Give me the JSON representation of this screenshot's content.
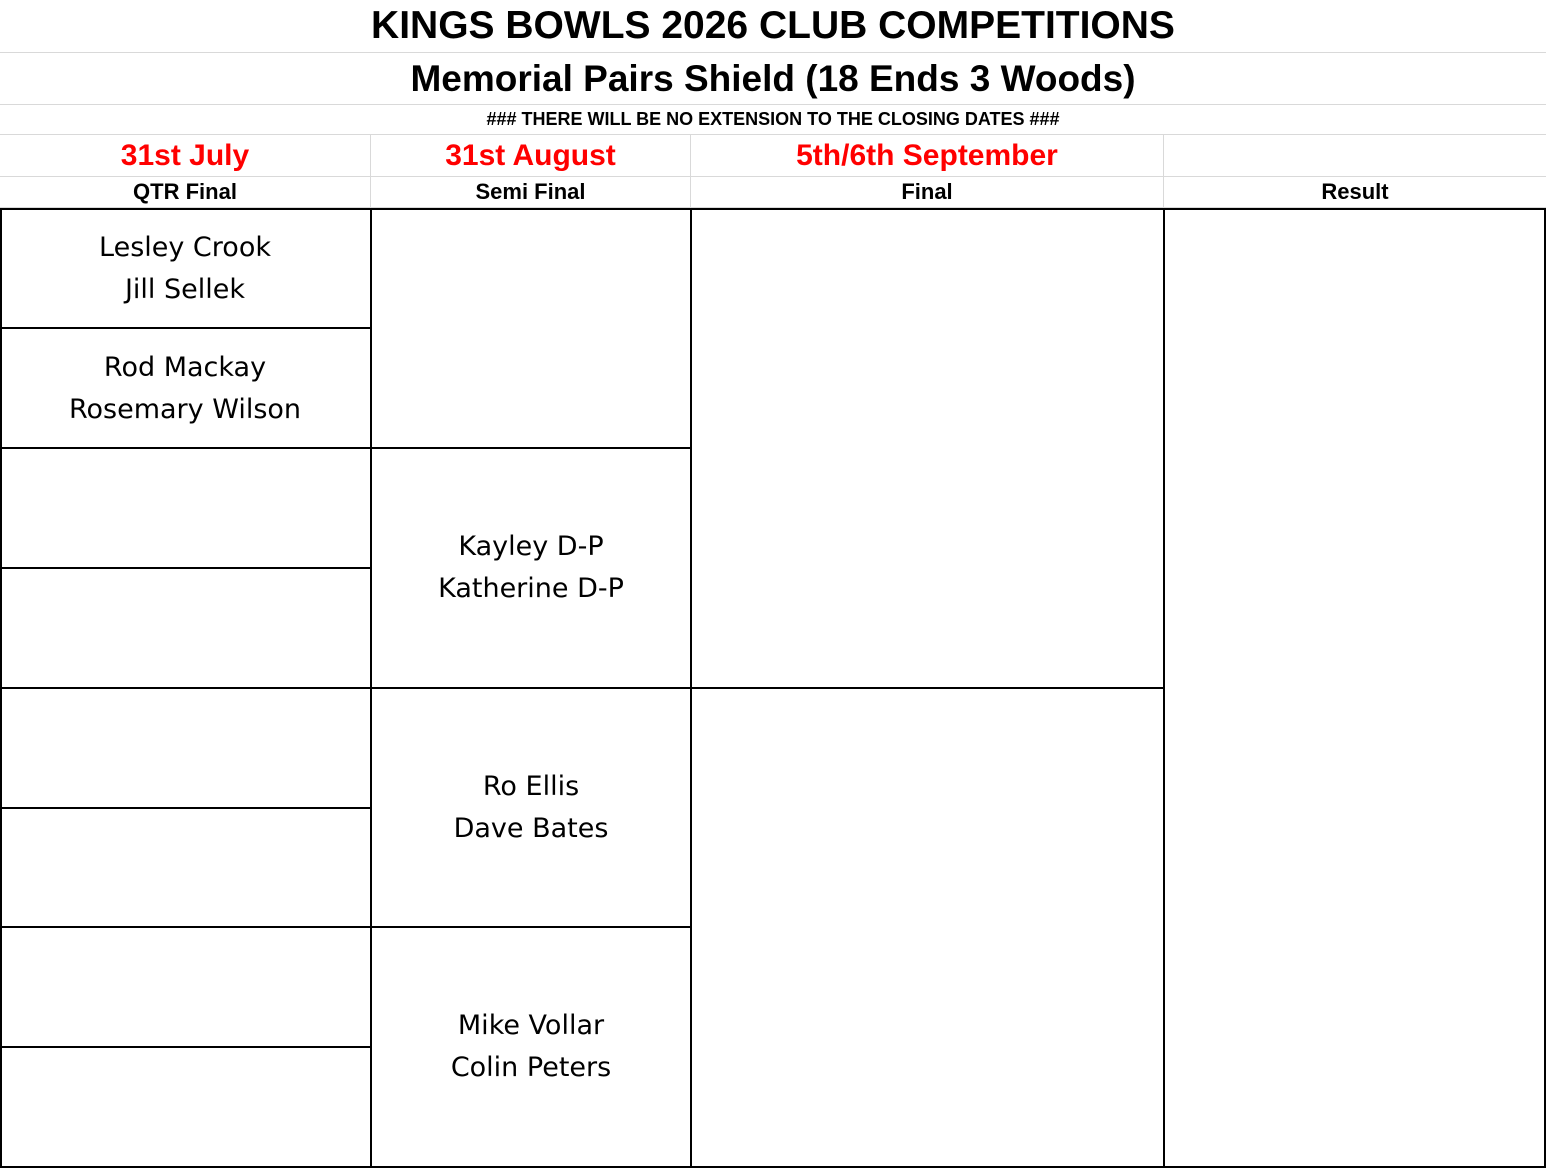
{
  "title": "KINGS BOWLS 2026 CLUB COMPETITIONS",
  "subtitle": "Memorial Pairs Shield (18 Ends 3 Woods)",
  "notice": "###  THERE WILL BE NO EXTENSION TO THE CLOSING DATES  ###",
  "dates": {
    "qtr": "31st July",
    "semi": "31st August",
    "final": "5th/6th September",
    "result": ""
  },
  "rounds": {
    "qtr": "QTR Final",
    "semi": "Semi Final",
    "final": "Final",
    "result": "Result"
  },
  "qtr_final": [
    {
      "player1": "Lesley Crook",
      "player2": "Jill Sellek"
    },
    {
      "player1": "Rod Mackay",
      "player2": "Rosemary Wilson"
    },
    {
      "player1": "",
      "player2": ""
    },
    {
      "player1": "",
      "player2": ""
    },
    {
      "player1": "",
      "player2": ""
    },
    {
      "player1": "",
      "player2": ""
    },
    {
      "player1": "",
      "player2": ""
    },
    {
      "player1": "",
      "player2": ""
    }
  ],
  "semi_final": [
    {
      "player1": "",
      "player2": ""
    },
    {
      "player1": "Kayley D-P",
      "player2": "Katherine D-P"
    },
    {
      "player1": "Ro Ellis",
      "player2": "Dave Bates"
    },
    {
      "player1": "Mike Vollar",
      "player2": "Colin Peters"
    }
  ],
  "final": [
    {
      "player1": "",
      "player2": ""
    },
    {
      "player1": "",
      "player2": ""
    }
  ],
  "result": {
    "player1": "",
    "player2": ""
  }
}
